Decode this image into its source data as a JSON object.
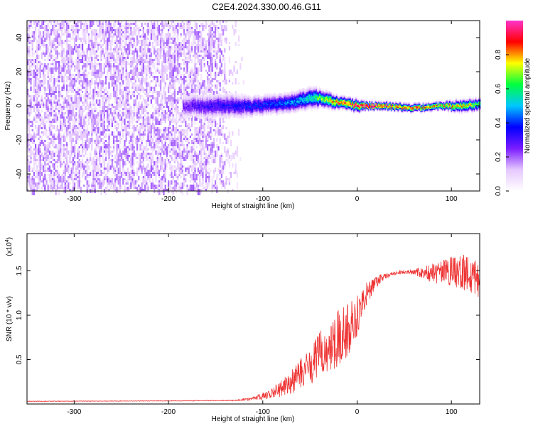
{
  "title": "C2E4.2024.330.00.46.G11",
  "chart_data": [
    {
      "type": "heatmap",
      "xlabel": "Height of straight line (km)",
      "ylabel": "Frequency (Hz)",
      "xlim": [
        -350,
        130
      ],
      "ylim": [
        -50,
        50
      ],
      "x_ticks": [
        -300,
        -200,
        -100,
        0,
        100
      ],
      "y_ticks": [
        -40,
        -20,
        0,
        20,
        40
      ],
      "colorbar": {
        "label": "Normalized spectral amplitude",
        "range": [
          0,
          1
        ],
        "ticks": [
          "0.0",
          "0.2",
          "0.4",
          "0.6",
          "0.8"
        ],
        "tick_values": [
          0.0,
          0.2,
          0.4,
          0.6,
          0.8
        ],
        "colormap": [
          "#ffffff",
          "#e6c8ff",
          "#7a1cff",
          "#0000ff",
          "#00c8ff",
          "#00ff40",
          "#ffff00",
          "#ff0000",
          "#ff33cc"
        ]
      },
      "noise_region": {
        "x_start": -350,
        "x_end": -120,
        "freq_min": -50,
        "freq_max": 50
      },
      "signal_ridge": {
        "x": [
          -185,
          -170,
          -150,
          -130,
          -110,
          -90,
          -70,
          -55,
          -45,
          -38,
          -30,
          -20,
          -10,
          0,
          10,
          30,
          50,
          70,
          90,
          110,
          130
        ],
        "center_hz": [
          0,
          0,
          0,
          0,
          0,
          1,
          2,
          4,
          5,
          4,
          3,
          2,
          1,
          0,
          0,
          0,
          -1,
          -1,
          0,
          0,
          1
        ],
        "half_width_hz": [
          6,
          6,
          6,
          6,
          5,
          5,
          5,
          5,
          5,
          4,
          4,
          3,
          3,
          3,
          2,
          2,
          2,
          2,
          2,
          3,
          3
        ],
        "peak_amplitude": [
          0.25,
          0.3,
          0.33,
          0.35,
          0.38,
          0.4,
          0.45,
          0.55,
          0.62,
          0.68,
          0.75,
          0.82,
          0.88,
          0.95,
          1.0,
          0.92,
          0.85,
          0.85,
          0.82,
          0.78,
          0.65
        ]
      }
    },
    {
      "type": "line",
      "xlabel": "Height of straight line (km)",
      "ylabel": "SNR (10 * v/v)",
      "y_scale_note": "(x10",
      "y_scale_exp": "4",
      "xlim": [
        -350,
        130
      ],
      "ylim": [
        0,
        19200
      ],
      "x_ticks": [
        -300,
        -200,
        -100,
        0,
        100
      ],
      "y_ticks": [
        5000,
        10000,
        15000
      ],
      "y_tick_labels": [
        "0.5",
        "1.0",
        "1.5"
      ],
      "color": "#ee3333",
      "series": [
        {
          "x": [
            -350,
            -200,
            -130,
            -110,
            -100,
            -90,
            -80,
            -70,
            -60,
            -50,
            -40,
            -30,
            -20,
            -10,
            0,
            10,
            20,
            30,
            40,
            50,
            60,
            70,
            80,
            90,
            100,
            110,
            120,
            130
          ],
          "y": [
            300,
            350,
            400,
            600,
            900,
            1300,
            1800,
            2400,
            3300,
            4300,
            5500,
            6500,
            7500,
            8400,
            10000,
            12400,
            13800,
            14400,
            14700,
            14900,
            14900,
            14800,
            14700,
            14800,
            14900,
            14800,
            14600,
            14500
          ],
          "noise_amp": [
            30,
            30,
            50,
            200,
            400,
            700,
            1000,
            1400,
            1800,
            2200,
            2600,
            3000,
            3200,
            3000,
            2400,
            1400,
            700,
            300,
            200,
            250,
            350,
            700,
            1100,
            1400,
            1700,
            2000,
            2400,
            2600
          ]
        }
      ]
    }
  ]
}
